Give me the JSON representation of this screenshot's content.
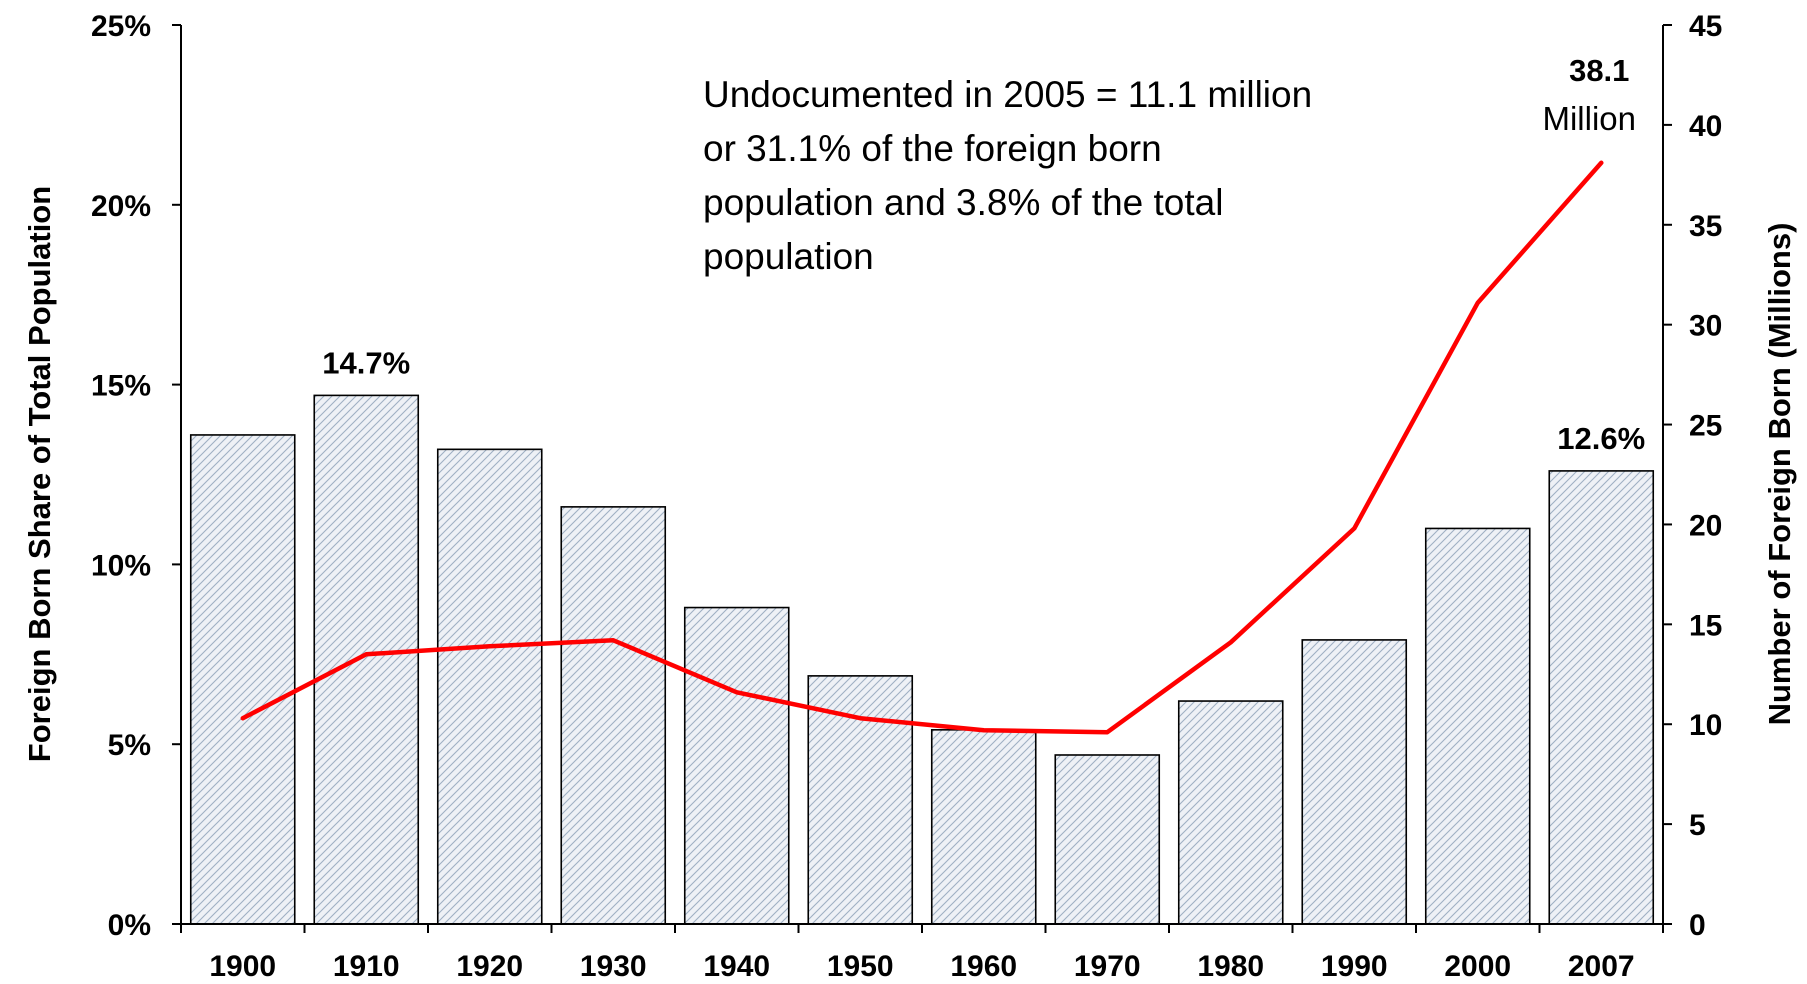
{
  "chart_data": {
    "type": "bar",
    "categories": [
      "1900",
      "1910",
      "1920",
      "1930",
      "1940",
      "1950",
      "1960",
      "1970",
      "1980",
      "1990",
      "2000",
      "2007"
    ],
    "series": [
      {
        "type": "bar",
        "axis": "left",
        "values": [
          13.6,
          14.7,
          13.2,
          11.6,
          8.8,
          6.9,
          5.4,
          4.7,
          6.2,
          7.9,
          11.0,
          12.6
        ]
      },
      {
        "type": "line",
        "axis": "right",
        "color": "#ff0000",
        "values": [
          10.3,
          13.5,
          13.9,
          14.2,
          11.6,
          10.3,
          9.7,
          9.6,
          14.1,
          19.8,
          31.1,
          38.1
        ]
      }
    ],
    "ylabel": "Foreign Born Share of Total Population",
    "y2label": "Number of Foreign Born (Millions)",
    "ylim": [
      0,
      25
    ],
    "y2lim": [
      0,
      45
    ],
    "y_ticks": [
      "0%",
      "5%",
      "10%",
      "15%",
      "20%",
      "25%"
    ],
    "y2_ticks": [
      "0",
      "5",
      "10",
      "15",
      "20",
      "25",
      "30",
      "35",
      "40",
      "45"
    ],
    "data_labels": [
      {
        "category": "1910",
        "text": "14.7%"
      },
      {
        "category": "2007",
        "text": "12.6%"
      }
    ],
    "line_end_label": {
      "value": "38.1",
      "unit": "Million"
    },
    "annotation": [
      "Undocumented in 2005 = 11.1 million",
      "or 31.1% of the foreign born",
      "population and 3.8% of the total",
      "population"
    ],
    "grid": false,
    "legend": "none"
  }
}
